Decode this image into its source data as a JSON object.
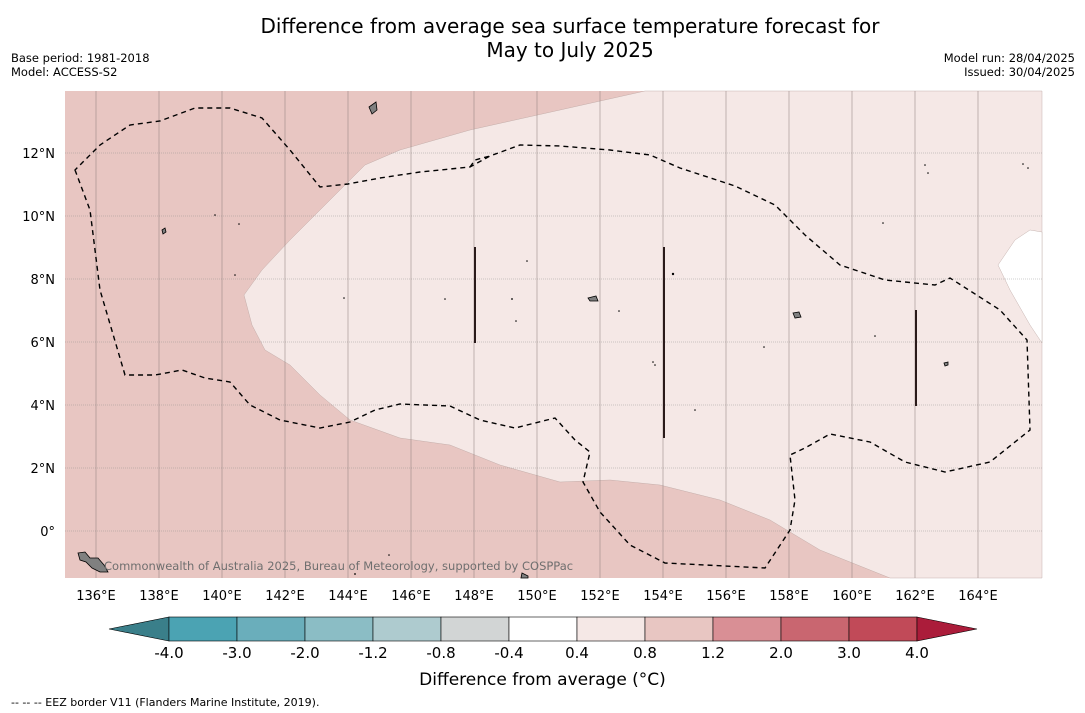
{
  "header": {
    "title_line1": "Difference from average sea surface temperature forecast for",
    "title_line2": "May to July 2025",
    "base_period": "Base period: 1981-2018",
    "model": "Model: ACCESS-S2",
    "model_run": "Model run: 28/04/2025",
    "issued": "Issued: 30/04/2025"
  },
  "map": {
    "lat_labels": [
      "12°N",
      "10°N",
      "8°N",
      "6°N",
      "4°N",
      "2°N",
      "0°"
    ],
    "lon_labels": [
      "136°E",
      "138°E",
      "140°E",
      "142°E",
      "144°E",
      "146°E",
      "148°E",
      "150°E",
      "152°E",
      "154°E",
      "156°E",
      "158°E",
      "160°E",
      "162°E",
      "164°E"
    ],
    "credit": "Commonwealth of Australia 2025, Bureau of Meteorology, supported by COSPPac",
    "colors": {
      "anomaly_0_8_to_1_2": "#e8c6c2",
      "anomaly_0_4_to_0_8": "#f5e8e6",
      "anomaly_minus_0_4_to_0_4": "#ffffff",
      "land": "#808080",
      "eez_border": "#000000"
    }
  },
  "colorbar": {
    "labels": [
      "-4.0",
      "-3.0",
      "-2.0",
      "-1.2",
      "-0.8",
      "-0.4",
      "0.4",
      "0.8",
      "1.2",
      "2.0",
      "3.0",
      "4.0"
    ],
    "colors": [
      "#3a7f8a",
      "#4ba3b3",
      "#6aaebb",
      "#8bbdc5",
      "#aecbcf",
      "#d2d5d5",
      "#ffffff",
      "#f5e8e6",
      "#e8c6c2",
      "#d98f95",
      "#c96670",
      "#c14a58",
      "#ab1c3a"
    ],
    "title": "Difference from average (°C)"
  },
  "footnote": "-- -- -- EEZ border V11 (Flanders Marine Institute, 2019)."
}
